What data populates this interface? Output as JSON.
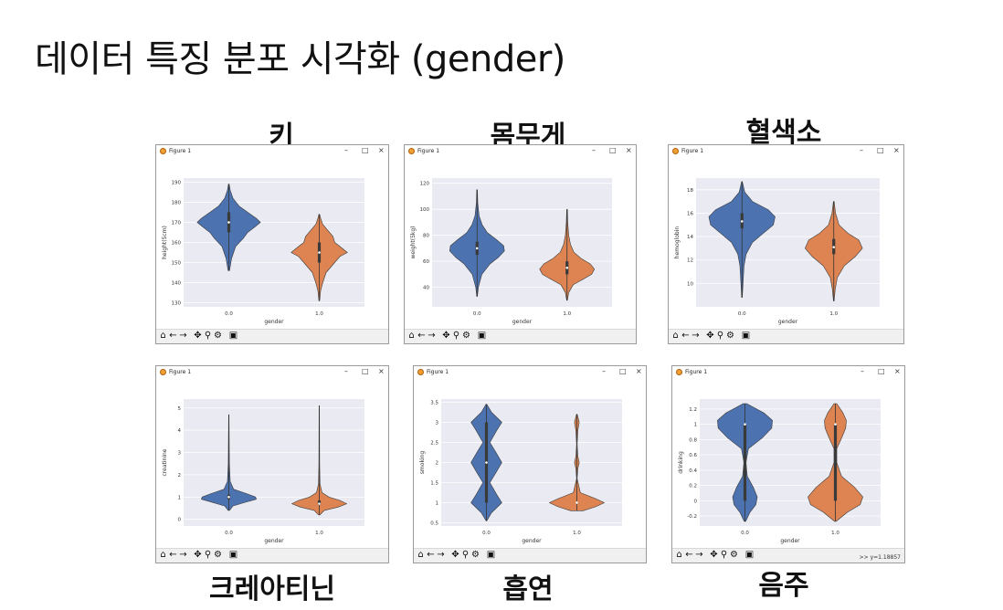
{
  "slide_title": "데이터 특징 분포 시각화 (gender)",
  "window_chrome": {
    "title": "Figure 1",
    "minimize": "–",
    "maximize": "□",
    "close": "×",
    "toolbar_icons": [
      "home-icon",
      "back-arrow-icon",
      "forward-arrow-icon",
      "pan-icon",
      "zoom-icon",
      "configure-icon",
      "save-icon"
    ]
  },
  "colors": {
    "male": "#4c72b0",
    "female": "#dd8452",
    "plot_bg": "#eaeaf2",
    "grid": "#ffffff"
  },
  "chart_data": [
    {
      "caption": "키",
      "type": "violin",
      "xlabel": "gender",
      "ylabel": "height(5cm)",
      "categories": [
        "0.0",
        "1.0"
      ],
      "ylim": [
        128,
        192
      ],
      "yticks": [
        130,
        140,
        150,
        160,
        170,
        180,
        190
      ],
      "status": "",
      "series": [
        {
          "extent": [
            146,
            189
          ],
          "median": 170,
          "q1": 165,
          "q3": 175,
          "profile": [
            [
              146,
              0.02
            ],
            [
              152,
              0.08
            ],
            [
              158,
              0.2
            ],
            [
              162,
              0.42
            ],
            [
              165,
              0.55
            ],
            [
              168,
              0.78
            ],
            [
              170,
              0.92
            ],
            [
              172,
              0.8
            ],
            [
              175,
              0.55
            ],
            [
              178,
              0.3
            ],
            [
              182,
              0.12
            ],
            [
              186,
              0.04
            ],
            [
              189,
              0.01
            ]
          ]
        },
        {
          "extent": [
            131,
            174
          ],
          "median": 155,
          "q1": 150,
          "q3": 160,
          "profile": [
            [
              131,
              0.01
            ],
            [
              136,
              0.04
            ],
            [
              140,
              0.1
            ],
            [
              145,
              0.2
            ],
            [
              150,
              0.45
            ],
            [
              153,
              0.6
            ],
            [
              155,
              0.82
            ],
            [
              158,
              0.6
            ],
            [
              160,
              0.45
            ],
            [
              163,
              0.4
            ],
            [
              166,
              0.25
            ],
            [
              169,
              0.1
            ],
            [
              172,
              0.04
            ],
            [
              174,
              0.01
            ]
          ]
        }
      ]
    },
    {
      "caption": "몸무게",
      "type": "violin",
      "xlabel": "gender",
      "ylabel": "weight(5kg)",
      "categories": [
        "0.0",
        "1.0"
      ],
      "ylim": [
        25,
        124
      ],
      "yticks": [
        40,
        60,
        80,
        100,
        120
      ],
      "status": "",
      "series": [
        {
          "extent": [
            33,
            115
          ],
          "median": 70,
          "q1": 65,
          "q3": 75,
          "profile": [
            [
              33,
              0.01
            ],
            [
              40,
              0.04
            ],
            [
              50,
              0.14
            ],
            [
              58,
              0.38
            ],
            [
              63,
              0.62
            ],
            [
              68,
              0.8
            ],
            [
              72,
              0.78
            ],
            [
              77,
              0.55
            ],
            [
              82,
              0.3
            ],
            [
              88,
              0.15
            ],
            [
              95,
              0.06
            ],
            [
              105,
              0.02
            ],
            [
              115,
              0.01
            ]
          ]
        },
        {
          "extent": [
            30,
            100
          ],
          "median": 55,
          "q1": 50,
          "q3": 60,
          "profile": [
            [
              30,
              0.01
            ],
            [
              36,
              0.05
            ],
            [
              42,
              0.18
            ],
            [
              47,
              0.52
            ],
            [
              50,
              0.72
            ],
            [
              54,
              0.8
            ],
            [
              58,
              0.68
            ],
            [
              62,
              0.42
            ],
            [
              67,
              0.2
            ],
            [
              73,
              0.1
            ],
            [
              80,
              0.05
            ],
            [
              90,
              0.02
            ],
            [
              100,
              0.01
            ]
          ]
        }
      ]
    },
    {
      "caption": "혈색소",
      "type": "violin",
      "xlabel": "gender",
      "ylabel": "hemoglobin",
      "categories": [
        "0.0",
        "1.0"
      ],
      "ylim": [
        8,
        19
      ],
      "yticks": [
        10,
        12,
        14,
        16,
        18
      ],
      "status": "",
      "series": [
        {
          "extent": [
            8.8,
            18.7
          ],
          "median": 15.3,
          "q1": 14.7,
          "q3": 16,
          "profile": [
            [
              8.8,
              0.01
            ],
            [
              10,
              0.03
            ],
            [
              11.5,
              0.06
            ],
            [
              12.5,
              0.12
            ],
            [
              13.5,
              0.3
            ],
            [
              14.3,
              0.62
            ],
            [
              15,
              0.9
            ],
            [
              15.7,
              0.95
            ],
            [
              16.3,
              0.75
            ],
            [
              17,
              0.3
            ],
            [
              17.8,
              0.08
            ],
            [
              18.7,
              0.01
            ]
          ]
        },
        {
          "extent": [
            8.5,
            17
          ],
          "median": 13.1,
          "q1": 12.5,
          "q3": 13.8,
          "profile": [
            [
              8.5,
              0.01
            ],
            [
              9.5,
              0.04
            ],
            [
              10.5,
              0.1
            ],
            [
              11.5,
              0.3
            ],
            [
              12.3,
              0.62
            ],
            [
              13,
              0.82
            ],
            [
              13.7,
              0.72
            ],
            [
              14.3,
              0.4
            ],
            [
              15,
              0.15
            ],
            [
              16,
              0.05
            ],
            [
              17,
              0.01
            ]
          ]
        }
      ]
    },
    {
      "caption": "크레아티닌",
      "type": "violin",
      "xlabel": "gender",
      "ylabel": "creatinine",
      "categories": [
        "0.0",
        "1.0"
      ],
      "ylim": [
        -0.3,
        5.4
      ],
      "yticks": [
        0,
        1,
        2,
        3,
        4,
        5
      ],
      "status": "",
      "series": [
        {
          "extent": [
            0.4,
            4.7
          ],
          "median": 1.0,
          "q1": 0.9,
          "q3": 1.1,
          "profile": [
            [
              0.4,
              0.02
            ],
            [
              0.6,
              0.12
            ],
            [
              0.75,
              0.45
            ],
            [
              0.9,
              0.8
            ],
            [
              1.0,
              0.78
            ],
            [
              1.15,
              0.52
            ],
            [
              1.35,
              0.14
            ],
            [
              1.7,
              0.04
            ],
            [
              2.5,
              0.015
            ],
            [
              4.7,
              0.006
            ]
          ]
        },
        {
          "extent": [
            0.2,
            5.1
          ],
          "median": 0.7,
          "q1": 0.65,
          "q3": 0.85,
          "profile": [
            [
              0.2,
              0.02
            ],
            [
              0.4,
              0.15
            ],
            [
              0.55,
              0.55
            ],
            [
              0.7,
              0.8
            ],
            [
              0.85,
              0.6
            ],
            [
              1.0,
              0.28
            ],
            [
              1.2,
              0.08
            ],
            [
              1.6,
              0.02
            ],
            [
              2.5,
              0.01
            ],
            [
              5.1,
              0.006
            ]
          ]
        }
      ]
    },
    {
      "caption": "흡연",
      "type": "violin",
      "xlabel": "gender",
      "ylabel": "smoking",
      "categories": [
        "0.0",
        "1.0"
      ],
      "ylim": [
        0.42,
        3.58
      ],
      "yticks": [
        0.5,
        1.0,
        1.5,
        2.0,
        2.5,
        3.0,
        3.5
      ],
      "status": "",
      "series": [
        {
          "extent": [
            0.55,
            3.45
          ],
          "median": 2.0,
          "q1": 1.0,
          "q3": 3.0,
          "profile": [
            [
              0.55,
              0.01
            ],
            [
              0.75,
              0.15
            ],
            [
              1.0,
              0.45
            ],
            [
              1.2,
              0.3
            ],
            [
              1.5,
              0.1
            ],
            [
              1.75,
              0.28
            ],
            [
              2.0,
              0.45
            ],
            [
              2.25,
              0.28
            ],
            [
              2.5,
              0.1
            ],
            [
              2.8,
              0.3
            ],
            [
              3.0,
              0.45
            ],
            [
              3.25,
              0.15
            ],
            [
              3.45,
              0.01
            ]
          ]
        },
        {
          "extent": [
            0.8,
            3.2
          ],
          "median": 1.0,
          "q1": 1.0,
          "q3": 1.0,
          "profile": [
            [
              0.8,
              0.18
            ],
            [
              0.9,
              0.55
            ],
            [
              1.0,
              0.8
            ],
            [
              1.1,
              0.55
            ],
            [
              1.25,
              0.1
            ],
            [
              1.6,
              0.008
            ],
            [
              1.85,
              0.03
            ],
            [
              2.0,
              0.07
            ],
            [
              2.15,
              0.03
            ],
            [
              2.45,
              0.008
            ],
            [
              2.8,
              0.03
            ],
            [
              3.0,
              0.07
            ],
            [
              3.2,
              0.01
            ]
          ]
        }
      ]
    },
    {
      "caption": "음주",
      "type": "violin",
      "xlabel": "gender",
      "ylabel": "drinking",
      "categories": [
        "0.0",
        "1.0"
      ],
      "ylim": [
        -0.33,
        1.33
      ],
      "yticks": [
        -0.2,
        0.0,
        0.2,
        0.4,
        0.6,
        0.8,
        1.0,
        1.2
      ],
      "status": ">> y=1.18857",
      "series": [
        {
          "extent": [
            -0.27,
            1.27
          ],
          "median": 1.0,
          "q1": 0.0,
          "q3": 1.0,
          "profile": [
            [
              -0.27,
              0.02
            ],
            [
              -0.15,
              0.15
            ],
            [
              -0.05,
              0.32
            ],
            [
              0.05,
              0.36
            ],
            [
              0.18,
              0.24
            ],
            [
              0.32,
              0.07
            ],
            [
              0.5,
              0.03
            ],
            [
              0.68,
              0.1
            ],
            [
              0.82,
              0.5
            ],
            [
              0.95,
              0.78
            ],
            [
              1.05,
              0.8
            ],
            [
              1.15,
              0.55
            ],
            [
              1.27,
              0.05
            ]
          ]
        },
        {
          "extent": [
            -0.27,
            1.27
          ],
          "median": 1.0,
          "q1": 0.0,
          "q3": 1.0,
          "profile": [
            [
              -0.27,
              0.02
            ],
            [
              -0.15,
              0.35
            ],
            [
              -0.05,
              0.72
            ],
            [
              0.05,
              0.8
            ],
            [
              0.18,
              0.55
            ],
            [
              0.32,
              0.18
            ],
            [
              0.5,
              0.04
            ],
            [
              0.68,
              0.04
            ],
            [
              0.82,
              0.18
            ],
            [
              0.95,
              0.3
            ],
            [
              1.05,
              0.32
            ],
            [
              1.15,
              0.22
            ],
            [
              1.27,
              0.04
            ]
          ]
        }
      ]
    }
  ]
}
